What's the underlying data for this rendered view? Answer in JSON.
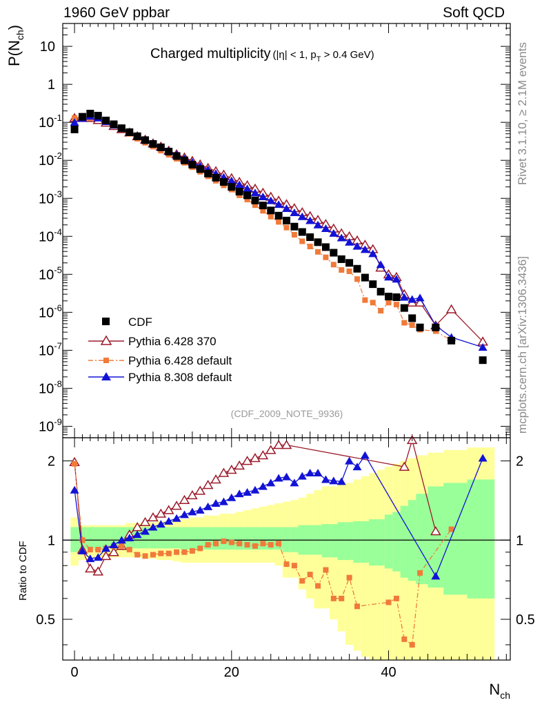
{
  "header": {
    "left": "1960 GeV ppbar",
    "right": "Soft QCD"
  },
  "side_labels": {
    "rivet": "Rivet 3.1.10, ≥ 2.1M events",
    "mcplots": "mcplots.cern.ch [arXiv:1306.3436]"
  },
  "chart_data": [
    {
      "type": "scatter",
      "panel": "main",
      "title_main": "Charged multiplicity",
      "title_cuts": "(|η| < 1, p",
      "title_cuts_sub": "T",
      "title_cuts_end": " > 0.4 GeV)",
      "analysis_tag": "(CDF_2009_NOTE_9936)",
      "ylabel_main": "P(N",
      "ylabel_sub": "ch",
      "ylabel_close": ")",
      "yscale": "log",
      "ylim": [
        5e-10,
        40
      ],
      "xlim": [
        -1.5,
        55.5
      ],
      "ytick_mantissa": "10",
      "ytick_exps": [
        "-9",
        "-8",
        "-7",
        "-6",
        "-5",
        "-4",
        "-3",
        "-2",
        "-1"
      ],
      "ytick_plain": [
        "1",
        "10"
      ],
      "legend_position": "middle-left",
      "series": [
        {
          "name": "CDF",
          "color": "#000000",
          "marker": "square",
          "x": [
            0,
            1,
            2,
            3,
            4,
            5,
            6,
            7,
            8,
            9,
            10,
            11,
            12,
            13,
            14,
            15,
            16,
            17,
            18,
            19,
            20,
            21,
            22,
            23,
            24,
            25,
            26,
            27,
            28,
            29,
            30,
            31,
            32,
            33,
            34,
            35,
            36,
            37,
            38,
            39,
            40,
            41,
            42,
            43,
            44,
            46,
            48,
            52
          ],
          "y": [
            0.065,
            0.14,
            0.17,
            0.15,
            0.112,
            0.089,
            0.07,
            0.055,
            0.043,
            0.034,
            0.027,
            0.022,
            0.017,
            0.013,
            0.01,
            0.0077,
            0.0059,
            0.0045,
            0.0035,
            0.0027,
            0.002,
            0.0015,
            0.0012,
            0.00088,
            0.00065,
            0.00048,
            0.00035,
            0.00026,
            0.00018,
            0.00013,
            9.5e-05,
            7e-05,
            5.2e-05,
            3.7e-05,
            2.5e-05,
            2e-05,
            1.4e-05,
            8.2e-06,
            5.5e-06,
            3.5e-06,
            2.6e-06,
            2.5e-06,
            1.3e-06,
            7e-07,
            4e-07,
            4e-07,
            1.8e-07,
            5.5e-08
          ]
        },
        {
          "name": "Pythia 6.428 370",
          "color": "#9b1a2a",
          "marker": "triangle-open",
          "x": [
            0,
            1,
            2,
            3,
            4,
            5,
            6,
            7,
            8,
            9,
            10,
            11,
            12,
            13,
            14,
            15,
            16,
            17,
            18,
            19,
            20,
            21,
            22,
            23,
            24,
            25,
            26,
            27,
            28,
            29,
            30,
            31,
            32,
            33,
            34,
            35,
            36,
            37,
            38,
            39,
            40,
            41,
            42,
            43,
            44,
            46,
            48,
            52
          ],
          "y": [
            0.13,
            0.13,
            0.13,
            0.115,
            0.098,
            0.08,
            0.066,
            0.054,
            0.043,
            0.035,
            0.028,
            0.023,
            0.018,
            0.0145,
            0.012,
            0.0097,
            0.0078,
            0.0063,
            0.0052,
            0.0042,
            0.0034,
            0.0027,
            0.0022,
            0.0018,
            0.0014,
            0.0011,
            0.00087,
            0.0007,
            0.00055,
            0.00043,
            0.00034,
            0.00027,
            0.00021,
            0.00016,
            0.00012,
            0.0001,
            7.8e-05,
            6e-05,
            4.6e-05,
            1.5e-05,
            1e-05,
            8.5e-06,
            3e-06,
            1.8e-06,
            1.8e-06,
            4.5e-07,
            1.2e-06,
            1.7e-07
          ]
        },
        {
          "name": "Pythia 6.428 default",
          "color": "#f07a3a",
          "marker": "square-small",
          "x": [
            0,
            1,
            2,
            3,
            4,
            5,
            6,
            7,
            8,
            9,
            10,
            11,
            12,
            13,
            14,
            15,
            16,
            17,
            18,
            19,
            20,
            21,
            22,
            23,
            24,
            25,
            26,
            27,
            28,
            29,
            30,
            31,
            32,
            33,
            34,
            35,
            36,
            37,
            38,
            39,
            40,
            41,
            42,
            43,
            44,
            46,
            48
          ],
          "y": [
            0.13,
            0.14,
            0.13,
            0.14,
            0.105,
            0.082,
            0.066,
            0.05,
            0.037,
            0.029,
            0.023,
            0.018,
            0.014,
            0.011,
            0.0086,
            0.0066,
            0.005,
            0.0038,
            0.0029,
            0.0022,
            0.0017,
            0.0012,
            0.00093,
            0.00066,
            0.00047,
            0.00033,
            0.00024,
            0.00017,
            0.00011,
            7.4e-05,
            5.4e-05,
            3.9e-05,
            2.8e-05,
            1.8e-05,
            1.3e-05,
            1.2e-05,
            7.5e-06,
            2.1e-06,
            1.8e-06,
            1.1e-06,
            1.8e-06,
            1.6e-06,
            5.3e-07,
            4.6e-07,
            3.5e-07,
            3.2e-07,
            1.8e-07
          ]
        },
        {
          "name": "Pythia 8.308 default",
          "color": "#1212d6",
          "marker": "triangle",
          "x": [
            0,
            1,
            2,
            3,
            4,
            5,
            6,
            7,
            8,
            9,
            10,
            11,
            12,
            13,
            14,
            15,
            16,
            17,
            18,
            19,
            20,
            21,
            22,
            23,
            24,
            25,
            26,
            27,
            28,
            29,
            30,
            31,
            32,
            33,
            34,
            35,
            36,
            37,
            38,
            39,
            40,
            41,
            42,
            43,
            44,
            46,
            48,
            52
          ],
          "y": [
            0.1,
            0.127,
            0.145,
            0.13,
            0.105,
            0.085,
            0.069,
            0.056,
            0.044,
            0.035,
            0.028,
            0.022,
            0.0176,
            0.014,
            0.0111,
            0.0089,
            0.0071,
            0.0057,
            0.0045,
            0.0036,
            0.0029,
            0.0023,
            0.0018,
            0.0014,
            0.0011,
            0.00087,
            0.00069,
            0.00054,
            0.00042,
            0.00033,
            0.00026,
            0.0002,
            0.00016,
            0.00012,
            9.1e-05,
            7e-05,
            5.5e-05,
            4.5e-05,
            3.5e-05,
            1.8e-05,
            8.5e-06,
            7.5e-06,
            2.5e-06,
            2.2e-06,
            2.4e-06,
            4.5e-07,
            2.2e-07,
            1.2e-07
          ]
        }
      ]
    },
    {
      "type": "scatter",
      "panel": "ratio",
      "ylabel": "Ratio to CDF",
      "yscale": "log",
      "ylim": [
        0.35,
        2.45
      ],
      "xlim": [
        -1.5,
        55.5
      ],
      "yticks": [
        "0.5",
        "1",
        "2"
      ],
      "xticks": [
        "0",
        "20",
        "40"
      ],
      "xlabel_main": "N",
      "xlabel_sub": "ch",
      "band_colors": {
        "inner": "#99ff99",
        "outer": "#ffff99"
      },
      "bands": {
        "x": [
          0,
          1,
          2,
          3,
          4,
          5,
          6,
          7,
          8,
          9,
          10,
          11,
          12,
          13,
          14,
          15,
          16,
          17,
          18,
          19,
          20,
          21,
          22,
          23,
          24,
          25,
          26,
          27,
          28,
          29,
          30,
          31,
          32,
          33,
          34,
          35,
          36,
          37,
          38,
          39,
          40,
          41,
          42,
          43,
          44,
          46,
          48,
          52
        ],
        "inner_lo": [
          0.9,
          0.92,
          0.93,
          0.93,
          0.93,
          0.93,
          0.93,
          0.93,
          0.93,
          0.93,
          0.93,
          0.93,
          0.93,
          0.93,
          0.92,
          0.92,
          0.92,
          0.92,
          0.92,
          0.92,
          0.92,
          0.92,
          0.92,
          0.92,
          0.92,
          0.92,
          0.92,
          0.9,
          0.9,
          0.88,
          0.88,
          0.88,
          0.86,
          0.86,
          0.84,
          0.84,
          0.82,
          0.82,
          0.8,
          0.8,
          0.78,
          0.76,
          0.72,
          0.7,
          0.68,
          0.66,
          0.62,
          0.6
        ],
        "inner_hi": [
          1.12,
          1.12,
          1.12,
          1.12,
          1.12,
          1.12,
          1.12,
          1.12,
          1.12,
          1.12,
          1.12,
          1.12,
          1.12,
          1.12,
          1.12,
          1.12,
          1.12,
          1.12,
          1.12,
          1.12,
          1.12,
          1.12,
          1.12,
          1.12,
          1.12,
          1.12,
          1.12,
          1.12,
          1.12,
          1.14,
          1.14,
          1.14,
          1.15,
          1.15,
          1.17,
          1.17,
          1.18,
          1.18,
          1.2,
          1.2,
          1.25,
          1.28,
          1.35,
          1.42,
          1.5,
          1.6,
          1.65,
          1.7
        ],
        "outer_lo": [
          0.8,
          0.84,
          0.86,
          0.86,
          0.86,
          0.86,
          0.86,
          0.86,
          0.86,
          0.85,
          0.85,
          0.84,
          0.84,
          0.83,
          0.82,
          0.82,
          0.82,
          0.82,
          0.82,
          0.82,
          0.82,
          0.82,
          0.82,
          0.82,
          0.82,
          0.82,
          0.8,
          0.72,
          0.72,
          0.65,
          0.6,
          0.55,
          0.55,
          0.5,
          0.45,
          0.4,
          0.38,
          0.36,
          0.35,
          0.35,
          0.35,
          0.35,
          0.35,
          0.35,
          0.35,
          0.35,
          0.35,
          0.35
        ],
        "outer_hi": [
          1.22,
          1.14,
          1.14,
          1.14,
          1.14,
          1.14,
          1.14,
          1.16,
          1.16,
          1.17,
          1.17,
          1.18,
          1.18,
          1.2,
          1.2,
          1.22,
          1.22,
          1.24,
          1.24,
          1.26,
          1.26,
          1.28,
          1.3,
          1.32,
          1.34,
          1.36,
          1.38,
          1.4,
          1.42,
          1.45,
          1.5,
          1.55,
          1.6,
          1.6,
          1.65,
          1.65,
          1.7,
          1.75,
          1.8,
          1.85,
          1.9,
          1.95,
          2.0,
          2.05,
          2.1,
          2.15,
          2.2,
          2.25
        ]
      },
      "series": [
        {
          "name": "Pythia 6.428 370",
          "color": "#9b1a2a",
          "marker": "triangle-open",
          "x": [
            0,
            1,
            2,
            3,
            4,
            5,
            6,
            7,
            8,
            9,
            10,
            11,
            12,
            13,
            14,
            15,
            16,
            17,
            18,
            19,
            20,
            21,
            22,
            23,
            24,
            25,
            26,
            27,
            42,
            43,
            46
          ],
          "y": [
            1.98,
            0.92,
            0.78,
            0.76,
            0.87,
            0.9,
            0.95,
            1.05,
            1.12,
            1.17,
            1.22,
            1.26,
            1.3,
            1.35,
            1.42,
            1.48,
            1.54,
            1.62,
            1.7,
            1.8,
            1.85,
            1.92,
            2.0,
            2.05,
            2.1,
            2.2,
            2.3,
            2.3,
            1.9,
            2.4,
            1.08
          ]
        },
        {
          "name": "Pythia 6.428 default",
          "color": "#f07a3a",
          "marker": "square-small",
          "x": [
            0,
            1,
            2,
            3,
            4,
            5,
            6,
            7,
            8,
            9,
            10,
            11,
            12,
            13,
            14,
            15,
            16,
            17,
            18,
            19,
            20,
            21,
            22,
            23,
            24,
            25,
            26,
            27,
            28,
            29,
            30,
            31,
            32,
            33,
            34,
            35,
            36,
            40,
            41,
            42,
            43,
            44,
            48
          ],
          "y": [
            1.95,
            1.0,
            0.92,
            0.92,
            0.93,
            0.95,
            0.95,
            0.92,
            0.88,
            0.87,
            0.88,
            0.89,
            0.89,
            0.9,
            0.9,
            0.91,
            0.93,
            0.96,
            0.97,
            0.99,
            0.98,
            0.97,
            0.96,
            0.95,
            0.97,
            0.96,
            0.97,
            0.81,
            0.8,
            0.7,
            0.74,
            0.67,
            0.77,
            0.6,
            0.6,
            0.72,
            0.56,
            0.58,
            0.6,
            0.42,
            0.4,
            0.75,
            1.1
          ]
        },
        {
          "name": "Pythia 8.308 default",
          "color": "#1212d6",
          "marker": "triangle",
          "x": [
            0,
            1,
            2,
            3,
            4,
            5,
            6,
            7,
            8,
            9,
            10,
            11,
            12,
            13,
            14,
            15,
            16,
            17,
            18,
            19,
            20,
            21,
            22,
            23,
            24,
            25,
            26,
            27,
            28,
            29,
            30,
            31,
            32,
            33,
            34,
            35,
            36,
            37,
            46,
            52
          ],
          "y": [
            1.55,
            0.91,
            0.85,
            0.86,
            0.93,
            0.96,
            1.0,
            1.02,
            1.05,
            1.08,
            1.12,
            1.15,
            1.18,
            1.21,
            1.25,
            1.28,
            1.3,
            1.34,
            1.38,
            1.4,
            1.45,
            1.5,
            1.52,
            1.55,
            1.6,
            1.65,
            1.72,
            1.74,
            1.65,
            1.75,
            1.8,
            1.8,
            1.7,
            1.68,
            1.67,
            2.0,
            1.9,
            2.1,
            0.73,
            2.05
          ]
        }
      ]
    }
  ]
}
